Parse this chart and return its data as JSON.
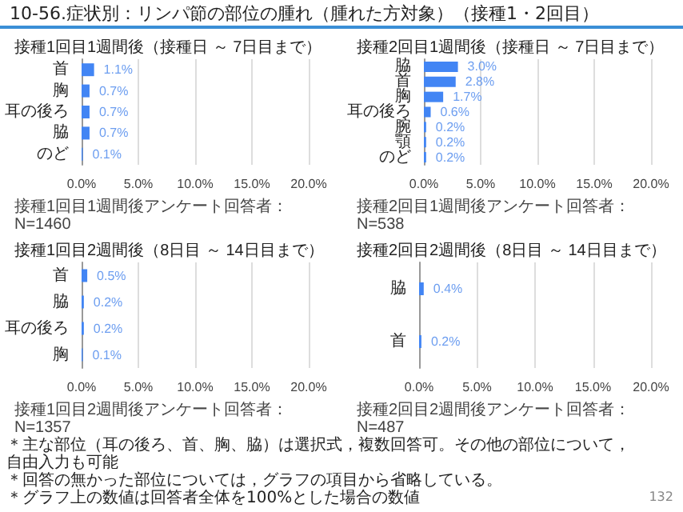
{
  "chart_data": [
    {
      "type": "bar",
      "orientation": "horizontal",
      "title": "接種1回目1週間後（接種日 ～ 7日目まで）",
      "categories": [
        "首",
        "胸",
        "耳の後ろ",
        "脇",
        "のど"
      ],
      "values": [
        1.1,
        0.7,
        0.7,
        0.7,
        0.1
      ],
      "value_labels": [
        "1.1%",
        "0.7%",
        "0.7%",
        "0.7%",
        "0.1%"
      ],
      "color": "#4285f4",
      "xlim": [
        0,
        20
      ],
      "xticks": [
        {
          "value": 0,
          "label": "0.0%"
        },
        {
          "value": 5,
          "label": "5.0%"
        },
        {
          "value": 10,
          "label": "10.0%"
        },
        {
          "value": 15,
          "label": "15.0%"
        },
        {
          "value": 20,
          "label": "20.0%"
        }
      ],
      "grid": "x",
      "annotations": [
        "接種1回目1週間後アンケート回答者：N=1460",
        "10-56.症状別：リンパ節の部位の腫れ（腫れた方対象）（接種1・2回目）",
        "＊主な部位（耳の後ろ、首、胸、脇）は選択式，複数回答可。その他の部位について，自由入力も可能",
        "＊回答の無かった部位については，グラフの項目から省略している。",
        "＊グラフ上の数値は回答者全体を100%とした場合の数値",
        "132"
      ]
    },
    {
      "type": "bar",
      "orientation": "horizontal",
      "title": "接種2回目1週間後（接種日 ～ 7日目まで）",
      "categories": [
        "脇",
        "首",
        "胸",
        "耳の後ろ",
        "腕",
        "顎",
        "のど"
      ],
      "values": [
        3.0,
        2.8,
        1.7,
        0.6,
        0.2,
        0.2,
        0.2
      ],
      "value_labels": [
        "3.0%",
        "2.8%",
        "1.7%",
        "0.6%",
        "0.2%",
        "0.2%",
        "0.2%"
      ],
      "color": "#4285f4",
      "xlim": [
        0,
        20
      ],
      "xticks": [
        {
          "value": 0,
          "label": "0.0%"
        },
        {
          "value": 5,
          "label": "5.0%"
        },
        {
          "value": 10,
          "label": "10.0%"
        },
        {
          "value": 15,
          "label": "15.0%"
        },
        {
          "value": 20,
          "label": "20.0%"
        }
      ],
      "grid": "x",
      "annotations": [
        "接種2回目1週間後アンケート回答者：N=538"
      ]
    },
    {
      "type": "bar",
      "orientation": "horizontal",
      "title": "接種1回目2週間後（8日目 ～ 14日目まで）",
      "categories": [
        "首",
        "脇",
        "耳の後ろ",
        "胸"
      ],
      "values": [
        0.5,
        0.2,
        0.2,
        0.1
      ],
      "value_labels": [
        "0.5%",
        "0.2%",
        "0.2%",
        "0.1%"
      ],
      "color": "#4285f4",
      "xlim": [
        0,
        20
      ],
      "xticks": [
        {
          "value": 0,
          "label": "0.0%"
        },
        {
          "value": 5,
          "label": "5.0%"
        },
        {
          "value": 10,
          "label": "10.0%"
        },
        {
          "value": 15,
          "label": "15.0%"
        },
        {
          "value": 20,
          "label": "20.0%"
        }
      ],
      "grid": "x",
      "annotations": [
        "接種1回目2週間後アンケート回答者：N=1357"
      ]
    },
    {
      "type": "bar",
      "orientation": "horizontal",
      "title": "接種2回目2週間後（8日目 ～ 14日目まで）",
      "categories": [
        "脇",
        "首"
      ],
      "values": [
        0.4,
        0.2
      ],
      "value_labels": [
        "0.4%",
        "0.2%"
      ],
      "color": "#4285f4",
      "xlim": [
        0,
        20
      ],
      "xticks": [
        {
          "value": 0,
          "label": "0.0%"
        },
        {
          "value": 5,
          "label": "5.0%"
        },
        {
          "value": 10,
          "label": "10.0%"
        },
        {
          "value": 15,
          "label": "15.0%"
        },
        {
          "value": 20,
          "label": "20.0%"
        }
      ],
      "grid": "x",
      "annotations": [
        "接種2回目2週間後アンケート回答者：N=487"
      ]
    }
  ]
}
